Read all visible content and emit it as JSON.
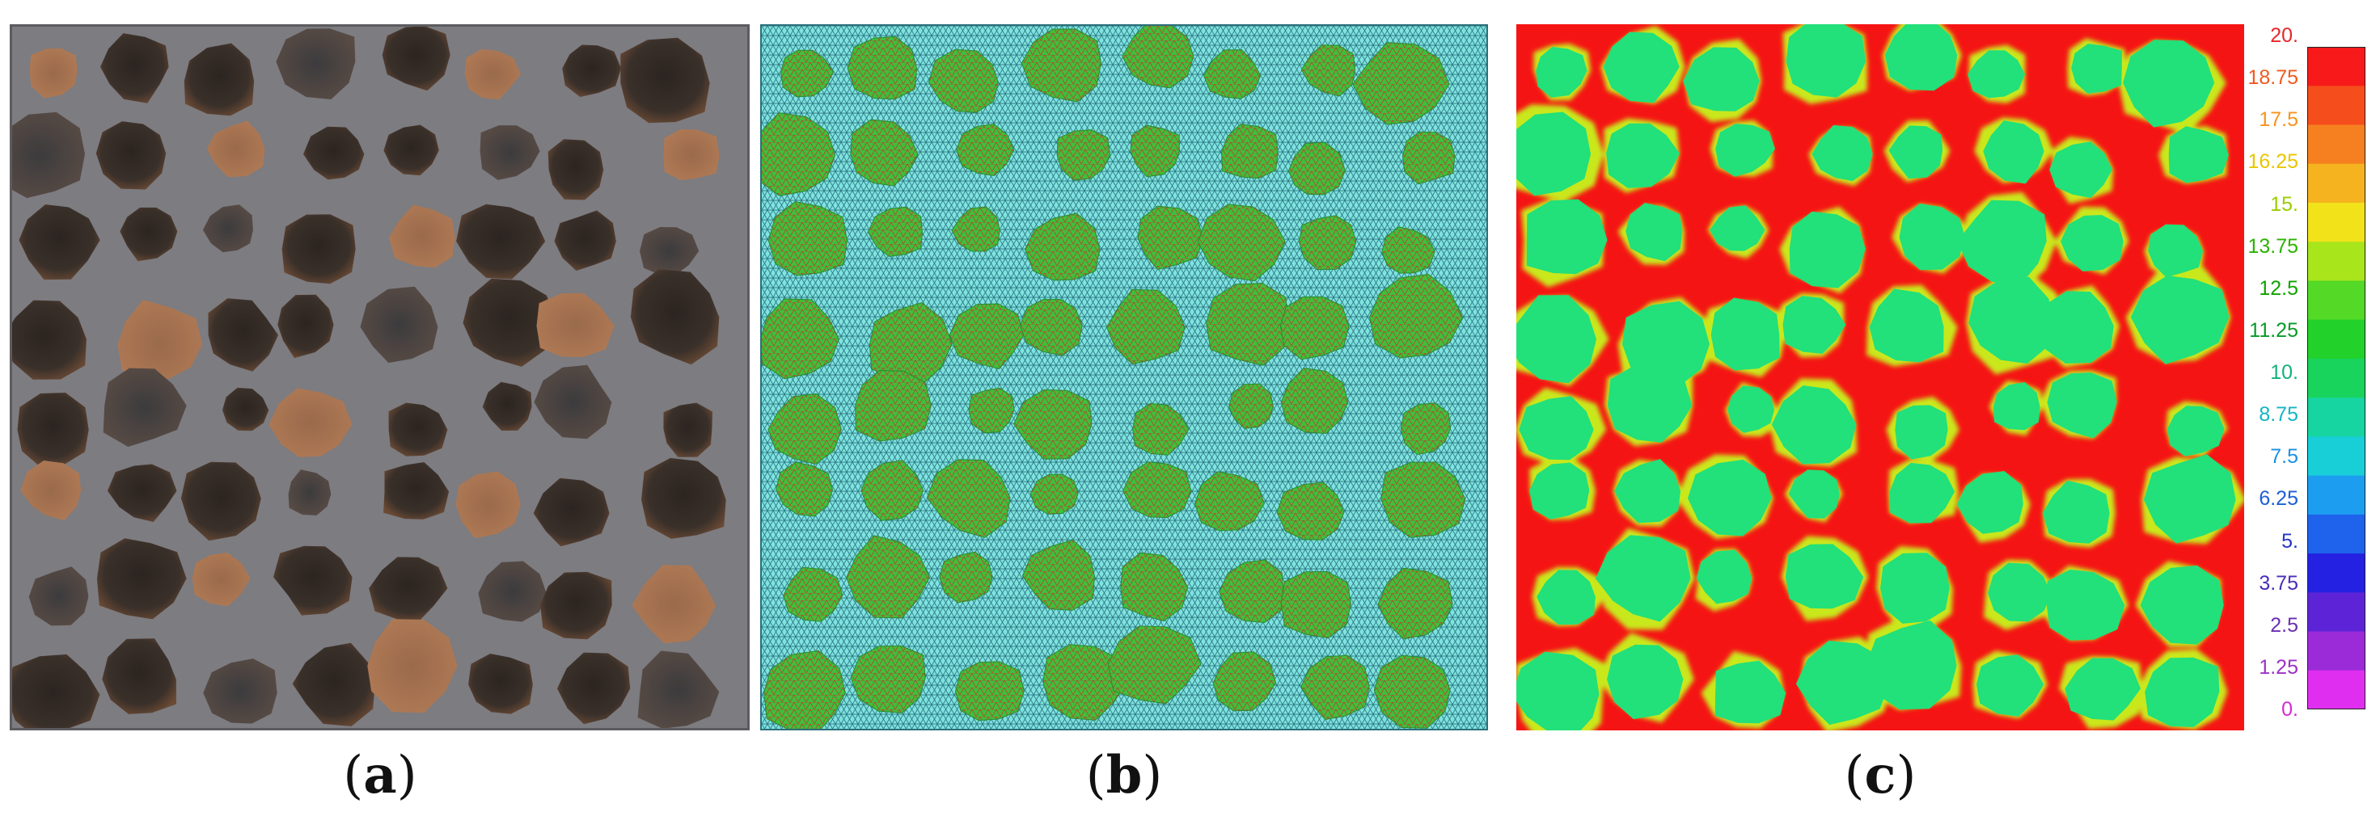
{
  "panels": [
    {
      "id": "a",
      "caption_open": "(",
      "caption_letter": "a",
      "caption_close": ")"
    },
    {
      "id": "b",
      "caption_open": "(",
      "caption_letter": "b",
      "caption_close": ")"
    },
    {
      "id": "c",
      "caption_open": "(",
      "caption_letter": "c",
      "caption_close": ")"
    }
  ],
  "colorbar": {
    "labels": [
      "20.",
      "18.75",
      "17.5",
      "16.25",
      "15.",
      "13.75",
      "12.5",
      "11.25",
      "10.",
      "8.75",
      "7.5",
      "6.25",
      "5.",
      "3.75",
      "2.5",
      "1.25",
      "0."
    ],
    "label_colors": [
      "#e8262a",
      "#f05a1e",
      "#f7941d",
      "#e8c600",
      "#9acd00",
      "#2bb300",
      "#12a100",
      "#089a2a",
      "#12b27b",
      "#13b5c4",
      "#1b8fe0",
      "#1d5fd4",
      "#2536c7",
      "#4b2fb8",
      "#6a2fb0",
      "#9c31c4",
      "#d52ad4"
    ],
    "band_colors": [
      "#f81a1a",
      "#f54d1c",
      "#f6801f",
      "#f5b31f",
      "#f2e21a",
      "#a9e51b",
      "#53d926",
      "#22d22b",
      "#19d45c",
      "#16d5a0",
      "#18cfd8",
      "#1d9df0",
      "#1f62ec",
      "#2421e2",
      "#5c24d6",
      "#9b2bd9",
      "#e02ef0"
    ]
  }
}
